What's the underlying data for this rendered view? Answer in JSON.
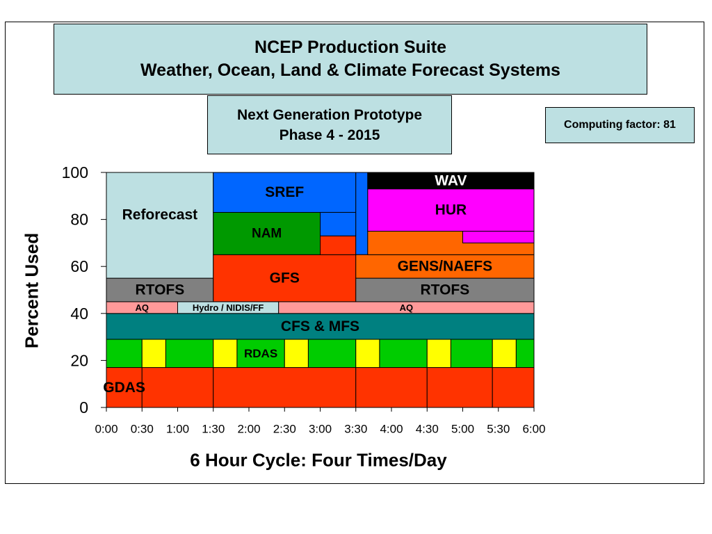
{
  "header": {
    "title_line1": "NCEP Production Suite",
    "title_line2": "Weather, Ocean, Land & Climate Forecast Systems",
    "subtitle_line1": "Next Generation Prototype",
    "subtitle_line2": "Phase 4 - 2015",
    "computing_factor": "Computing factor: 81"
  },
  "chart_data": {
    "type": "area",
    "title": "",
    "ylabel": "Percent Used",
    "xlabel": "6 Hour Cycle: Four Times/Day",
    "ylim": [
      0,
      100
    ],
    "yticks": [
      0,
      20,
      40,
      60,
      80,
      100
    ],
    "xticks": [
      "0:00",
      "0:30",
      "1:00",
      "1:30",
      "2:00",
      "2:30",
      "3:00",
      "3:30",
      "4:00",
      "4:30",
      "5:00",
      "5:30",
      "6:00"
    ],
    "grid": false,
    "blocks": [
      {
        "name": "GDAS",
        "label": "GDAS",
        "x0": 0,
        "x1": 30,
        "y0": 0,
        "y1": 17,
        "color": "#ff3300"
      },
      {
        "name": "GDAS",
        "label": "",
        "x0": 30,
        "x1": 90,
        "y0": 0,
        "y1": 17,
        "color": "#ff3300"
      },
      {
        "name": "GDAS",
        "label": "",
        "x0": 90,
        "x1": 210,
        "y0": 0,
        "y1": 17,
        "color": "#ff3300"
      },
      {
        "name": "GDAS",
        "label": "",
        "x0": 210,
        "x1": 270,
        "y0": 0,
        "y1": 17,
        "color": "#ff3300"
      },
      {
        "name": "GDAS",
        "label": "",
        "x0": 270,
        "x1": 325,
        "y0": 0,
        "y1": 17,
        "color": "#ff3300"
      },
      {
        "name": "GDAS",
        "label": "",
        "x0": 325,
        "x1": 360,
        "y0": 0,
        "y1": 17,
        "color": "#ff3300"
      },
      {
        "name": "RDAS",
        "label": "",
        "x0": 0,
        "x1": 30,
        "y0": 17,
        "y1": 29,
        "color": "#00cc00"
      },
      {
        "name": "RDAS",
        "label": "",
        "x0": 30,
        "x1": 50,
        "y0": 17,
        "y1": 29,
        "color": "#ffff00"
      },
      {
        "name": "RDAS",
        "label": "",
        "x0": 50,
        "x1": 90,
        "y0": 17,
        "y1": 29,
        "color": "#00cc00"
      },
      {
        "name": "RDAS",
        "label": "",
        "x0": 90,
        "x1": 110,
        "y0": 17,
        "y1": 29,
        "color": "#ffff00"
      },
      {
        "name": "RDAS",
        "label": "RDAS",
        "x0": 110,
        "x1": 150,
        "y0": 17,
        "y1": 29,
        "color": "#00cc00"
      },
      {
        "name": "RDAS",
        "label": "",
        "x0": 150,
        "x1": 170,
        "y0": 17,
        "y1": 29,
        "color": "#ffff00"
      },
      {
        "name": "RDAS",
        "label": "",
        "x0": 170,
        "x1": 210,
        "y0": 17,
        "y1": 29,
        "color": "#00cc00"
      },
      {
        "name": "RDAS",
        "label": "",
        "x0": 210,
        "x1": 230,
        "y0": 17,
        "y1": 29,
        "color": "#ffff00"
      },
      {
        "name": "RDAS",
        "label": "",
        "x0": 230,
        "x1": 270,
        "y0": 17,
        "y1": 29,
        "color": "#00cc00"
      },
      {
        "name": "RDAS",
        "label": "",
        "x0": 270,
        "x1": 290,
        "y0": 17,
        "y1": 29,
        "color": "#ffff00"
      },
      {
        "name": "RDAS",
        "label": "",
        "x0": 290,
        "x1": 325,
        "y0": 17,
        "y1": 29,
        "color": "#00cc00"
      },
      {
        "name": "RDAS",
        "label": "",
        "x0": 325,
        "x1": 345,
        "y0": 17,
        "y1": 29,
        "color": "#ffff00"
      },
      {
        "name": "RDAS",
        "label": "",
        "x0": 345,
        "x1": 360,
        "y0": 17,
        "y1": 29,
        "color": "#00cc00"
      },
      {
        "name": "CFS & MFS",
        "label": "CFS & MFS",
        "x0": 0,
        "x1": 360,
        "y0": 29,
        "y1": 40,
        "color": "#008080"
      },
      {
        "name": "AQ",
        "label": "AQ",
        "x0": 0,
        "x1": 60,
        "y0": 40,
        "y1": 45,
        "color": "#ff9999"
      },
      {
        "name": "Hydro / NIDIS/FF",
        "label": "Hydro / NIDIS/FF",
        "x0": 60,
        "x1": 145,
        "y0": 40,
        "y1": 45,
        "color": "#bde0e2"
      },
      {
        "name": "AQ",
        "label": "AQ",
        "x0": 145,
        "x1": 360,
        "y0": 40,
        "y1": 45,
        "color": "#ff9999"
      },
      {
        "name": "RTOFS",
        "label": "RTOFS",
        "x0": 0,
        "x1": 90,
        "y0": 45,
        "y1": 55,
        "color": "#808080"
      },
      {
        "name": "Reforecast",
        "label": "Reforecast",
        "x0": 0,
        "x1": 90,
        "y0": 55,
        "y1": 100,
        "color": "#bde0e2"
      },
      {
        "name": "GFS",
        "label": "GFS",
        "x0": 90,
        "x1": 210,
        "y0": 45,
        "y1": 65,
        "color": "#ff3300"
      },
      {
        "name": "GFS",
        "label": "",
        "x0": 180,
        "x1": 210,
        "y0": 65,
        "y1": 73,
        "color": "#ff3300"
      },
      {
        "name": "NAM",
        "label": "NAM",
        "x0": 90,
        "x1": 180,
        "y0": 65,
        "y1": 83,
        "color": "#009900"
      },
      {
        "name": "SREF",
        "label": "SREF",
        "x0": 90,
        "x1": 210,
        "y0": 83,
        "y1": 100,
        "color": "#0066ff"
      },
      {
        "name": "SREF",
        "label": "",
        "x0": 180,
        "x1": 210,
        "y0": 73,
        "y1": 83,
        "color": "#0066ff"
      },
      {
        "name": "SREF",
        "label": "",
        "x0": 210,
        "x1": 220,
        "y0": 65,
        "y1": 100,
        "color": "#0066ff"
      },
      {
        "name": "RTOFS",
        "label": "RTOFS",
        "x0": 210,
        "x1": 360,
        "y0": 45,
        "y1": 55,
        "color": "#808080"
      },
      {
        "name": "GENS/NAEFS",
        "label": "GENS/NAEFS",
        "x0": 210,
        "x1": 360,
        "y0": 55,
        "y1": 65,
        "color": "#ff6600"
      },
      {
        "name": "GENS/NAEFS",
        "label": "",
        "x0": 220,
        "x1": 360,
        "y0": 65,
        "y1": 75,
        "color": "#ff6600"
      },
      {
        "name": "HUR",
        "label": "",
        "x0": 300,
        "x1": 360,
        "y0": 70,
        "y1": 75,
        "color": "#ff00ff"
      },
      {
        "name": "HUR",
        "label": "HUR",
        "x0": 220,
        "x1": 360,
        "y0": 75,
        "y1": 93,
        "color": "#ff00ff"
      },
      {
        "name": "WAV",
        "label": "WAV",
        "x0": 220,
        "x1": 360,
        "y0": 93,
        "y1": 100,
        "color": "#000000"
      }
    ]
  }
}
